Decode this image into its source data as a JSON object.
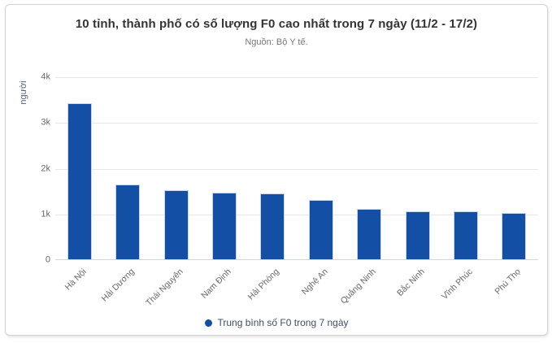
{
  "chart_data": {
    "type": "bar",
    "title": "10 tỉnh, thành phố có số lượng F0 cao nhất trong 7 ngày (11/2 - 17/2)",
    "subtitle": "Nguồn: Bộ Y tế.",
    "ylabel": "người",
    "xlabel": "",
    "categories": [
      "Hà Nội",
      "Hải Dương",
      "Thái Nguyên",
      "Nam Định",
      "Hải Phòng",
      "Nghệ An",
      "Quảng Ninh",
      "Bắc Ninh",
      "Vĩnh Phúc",
      "Phú Thọ"
    ],
    "series": [
      {
        "name": "Trung bình số F0 trong 7 ngày",
        "values": [
          3430,
          1650,
          1530,
          1470,
          1450,
          1310,
          1120,
          1065,
          1060,
          1025
        ]
      }
    ],
    "ylim": [
      0,
      4000
    ],
    "yticks": [
      {
        "value": 0,
        "label": "0"
      },
      {
        "value": 1000,
        "label": "1k"
      },
      {
        "value": 2000,
        "label": "2k"
      },
      {
        "value": 3000,
        "label": "3k"
      },
      {
        "value": 4000,
        "label": "4k"
      }
    ],
    "grid": true,
    "legend_position": "bottom"
  },
  "colors": {
    "bar": "#134fa5",
    "bar_border": "#ccd6eb",
    "axis_line": "#ccd6eb",
    "gridline": "#e7e7e7",
    "tick_label": "#666666",
    "axis_title": "#54617a",
    "title": "#333333",
    "subtitle": "#777777",
    "legend_text": "#3e4d66",
    "card_border": "#d2d2d2"
  }
}
